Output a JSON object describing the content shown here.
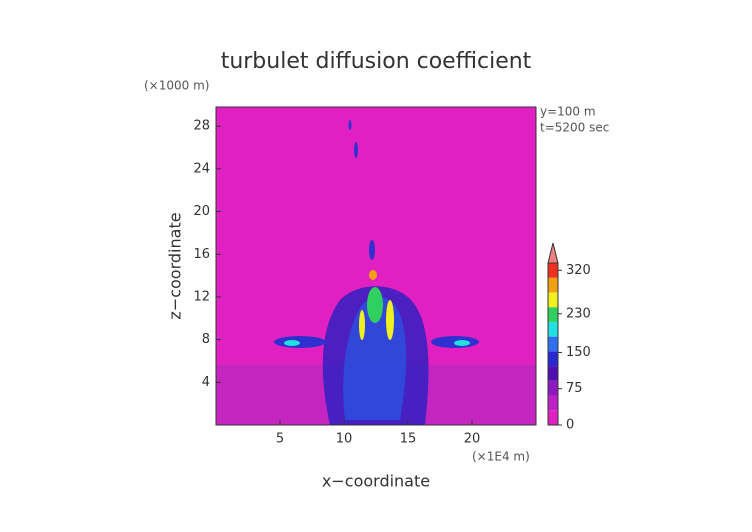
{
  "chart_data": {
    "type": "contour",
    "title": "turbulet diffusion coefficient",
    "x_label": "x−coordinate",
    "y_label": "z−coordinate",
    "x_unit": "(×1E4 m)",
    "y_unit": "(×1000 m)",
    "annotations": [
      "y=100 m",
      "t=5200 sec"
    ],
    "xlim": [
      0,
      25
    ],
    "xticks": [
      5,
      10,
      15,
      20
    ],
    "ylim": [
      0,
      29.8
    ],
    "yticks": [
      4,
      8,
      12,
      16,
      20,
      24,
      28
    ],
    "background_color": "#e020c0",
    "colorbar": {
      "lim": [
        0,
        335
      ],
      "ticks": [
        0,
        75,
        150,
        230,
        320
      ],
      "colors": [
        "#e020c0",
        "#c020c8",
        "#9018c0",
        "#5010b0",
        "#2828d0",
        "#3070f0",
        "#20e0e0",
        "#30d060",
        "#f0f020",
        "#f0a010",
        "#f03020",
        "#f08080"
      ]
    }
  }
}
